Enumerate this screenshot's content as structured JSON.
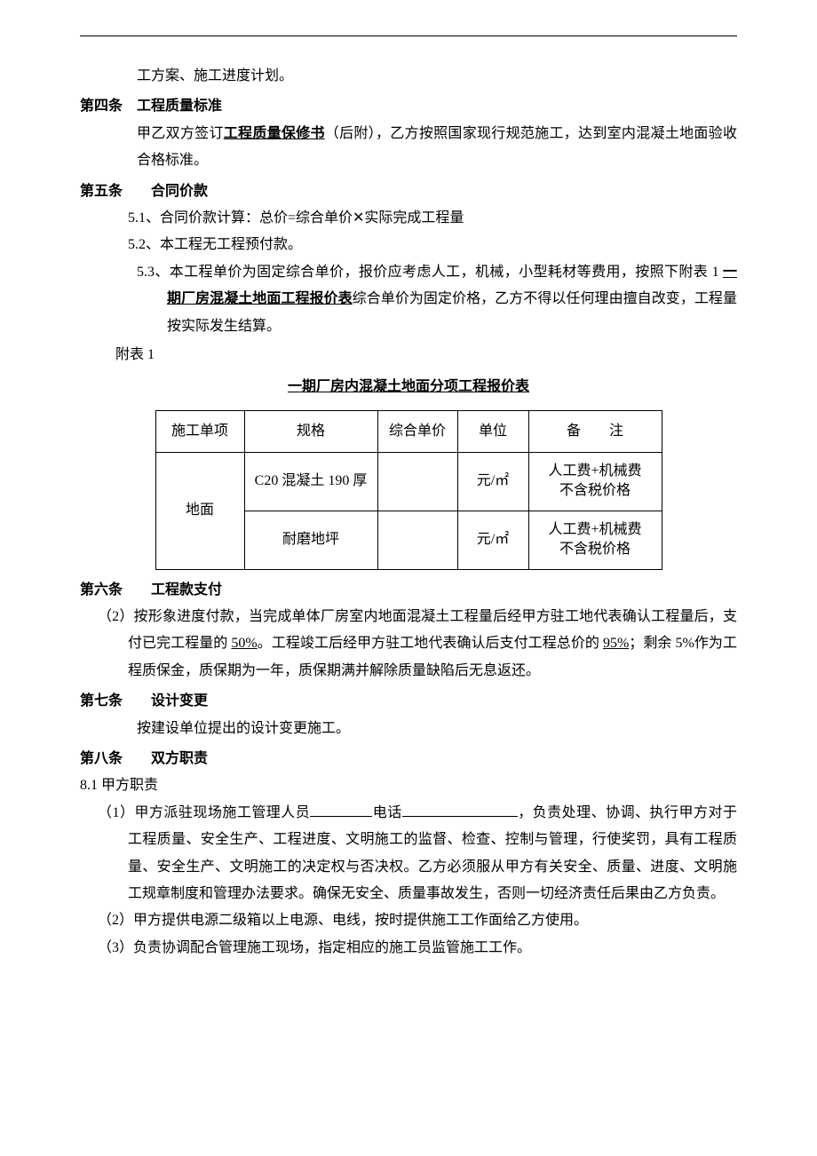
{
  "intro_line": "工方案、施工进度计划。",
  "article4": {
    "heading": "第四条　工程质量标准",
    "body_prefix": "甲乙双方签订",
    "body_underline": "工程质量保修书",
    "body_suffix": "（后附），乙方按照国家现行规范施工，达到室内混凝土地面验收合格标准。"
  },
  "article5": {
    "heading": "第五条　　合同价款",
    "item1": "5.1、合同价款计算：总价=综合单价✕实际完成工程量",
    "item2": "5.2、本工程无工程预付款。",
    "item3_prefix": "5.3、本工程单价为固定综合单价，报价应考虑人工，机械，小型耗材等费用，按照下附表 1 ",
    "item3_underline": "一期厂房混凝土地面工程报价表",
    "item3_suffix": "综合单价为固定价格，乙方不得以任何理由擅自改变，工程量按实际发生结算。",
    "attach_label": "附表 1",
    "table_title": "一期厂房内混凝土地面分项工程报价表",
    "table": {
      "headers": [
        "施工单项",
        "规格",
        "综合单价",
        "单位",
        "备　　注"
      ],
      "merged_cell": "地面",
      "rows": [
        {
          "spec": "C20 混凝土 190 厚",
          "price": "",
          "unit": "元/㎡",
          "note_l1": "人工费+机械费",
          "note_l2": "不含税价格"
        },
        {
          "spec": "耐磨地坪",
          "price": "",
          "unit": "元/㎡",
          "note_l1": "人工费+机械费",
          "note_l2": "不含税价格"
        }
      ]
    }
  },
  "article6": {
    "heading": "第六条　　工程款支付",
    "body_prefix": "（2）按形象进度付款，当完成单体厂房室内地面混凝土工程量后经甲方驻工地代表确认工程量后，支付已完工程量的 ",
    "pct1": "50%",
    "body_mid": "。工程竣工后经甲方驻工地代表确认后支付工程总价的 ",
    "pct2": "95%",
    "body_suffix": "；剩余 5%作为工程质保金，质保期为一年，质保期满并解除质量缺陷后无息返还。"
  },
  "article7": {
    "heading": "第七条　　设计变更",
    "body": "按建设单位提出的设计变更施工。"
  },
  "article8": {
    "heading": "第八条　　双方职责",
    "sub_heading": "8.1 甲方职责",
    "item1_prefix": "（1）甲方派驻现场施工管理人员",
    "item1_mid": "电话",
    "item1_suffix": "，负责处理、协调、执行甲方对于工程质量、安全生产、工程进度、文明施工的监督、检查、控制与管理，行使奖罚，具有工程质量、安全生产、文明施工的决定权与否决权。乙方必须服从甲方有关安全、质量、进度、文明施工规章制度和管理办法要求。确保无安全、质量事故发生，否则一切经济责任后果由乙方负责。",
    "item2": "（2）甲方提供电源二级箱以上电源、电线，按时提供施工工作面给乙方使用。",
    "item3": "（3）负责协调配合管理施工现场，指定相应的施工员监管施工工作。"
  }
}
